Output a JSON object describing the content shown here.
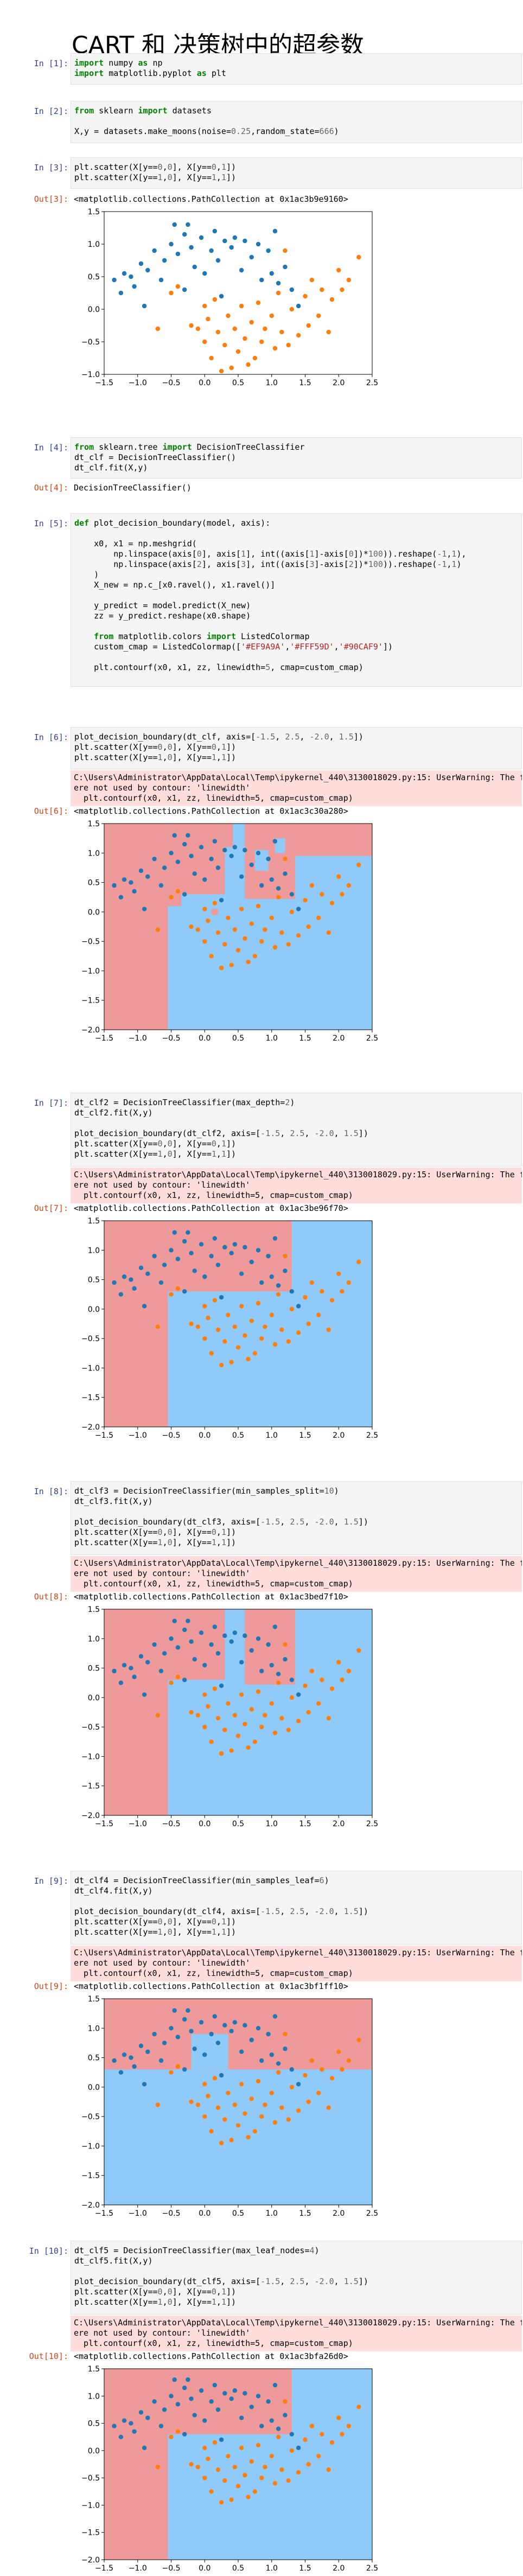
{
  "page_title": "CART 和 决策树中的超参数",
  "theme": {
    "blue": "#1f77b4",
    "orange": "#ff7f0e",
    "region0": "#EF9A9A",
    "region1": "#FFF59D",
    "region2": "#90CAF9"
  },
  "cells": [
    {
      "id": "c1",
      "prompt": "In [1]:",
      "lines": [
        "import numpy as np",
        "import matplotlib.pyplot as plt"
      ]
    },
    {
      "id": "c2",
      "prompt": "In [2]:",
      "lines": [
        "from sklearn import datasets",
        "",
        "X,y = datasets.make_moons(noise=0.25,random_state=666)"
      ]
    },
    {
      "id": "c3",
      "prompt": "In [3]:",
      "lines": [
        "plt.scatter(X[y==0,0], X[y==0,1])",
        "plt.scatter(X[y==1,0], X[y==1,1])"
      ],
      "out_prompt": "Out[3]:",
      "out_text": "<matplotlib.collections.PathCollection at 0x1ac3b9e9160>"
    },
    {
      "id": "c4",
      "prompt": "In [4]:",
      "lines": [
        "from sklearn.tree import DecisionTreeClassifier",
        "dt_clf = DecisionTreeClassifier()",
        "dt_clf.fit(X,y)"
      ],
      "out_prompt": "Out[4]:",
      "out_text": "DecisionTreeClassifier()"
    },
    {
      "id": "c5",
      "prompt": "In [5]:",
      "lines": [
        "def plot_decision_boundary(model, axis):",
        "",
        "    x0, x1 = np.meshgrid(",
        "        np.linspace(axis[0], axis[1], int((axis[1]-axis[0])*100)).reshape(-1,1),",
        "        np.linspace(axis[2], axis[3], int((axis[3]-axis[2])*100)).reshape(-1,1)",
        "    )",
        "    X_new = np.c_[x0.ravel(), x1.ravel()]",
        "",
        "    y_predict = model.predict(X_new)",
        "    zz = y_predict.reshape(x0.shape)",
        "",
        "    from matplotlib.colors import ListedColormap",
        "    custom_cmap = ListedColormap(['#EF9A9A','#FFF59D','#90CAF9'])",
        "",
        "    plt.contourf(x0, x1, zz, linewidth=5, cmap=custom_cmap)"
      ]
    },
    {
      "id": "c6",
      "prompt": "In [6]:",
      "lines": [
        "plot_decision_boundary(dt_clf, axis=[-1.5, 2.5, -2.0, 1.5])",
        "plt.scatter(X[y==0,0], X[y==0,1])",
        "plt.scatter(X[y==1,0], X[y==1,1])"
      ],
      "warn": [
        "C:\\Users\\Administrator\\AppData\\Local\\Temp\\ipykernel_440\\3130018029.py:15: UserWarning: The following kwargs w",
        "ere not used by contour: 'linewidth'",
        "  plt.contourf(x0, x1, zz, linewidth=5, cmap=custom_cmap)"
      ],
      "out_prompt": "Out[6]:",
      "out_text": "<matplotlib.collections.PathCollection at 0x1ac3c30a280>"
    },
    {
      "id": "c7",
      "prompt": "In [7]:",
      "lines": [
        "dt_clf2 = DecisionTreeClassifier(max_depth=2)",
        "dt_clf2.fit(X,y)",
        "",
        "plot_decision_boundary(dt_clf2, axis=[-1.5, 2.5, -2.0, 1.5])",
        "plt.scatter(X[y==0,0], X[y==0,1])",
        "plt.scatter(X[y==1,0], X[y==1,1])"
      ],
      "warn": [
        "C:\\Users\\Administrator\\AppData\\Local\\Temp\\ipykernel_440\\3130018029.py:15: UserWarning: The following kwargs w",
        "ere not used by contour: 'linewidth'",
        "  plt.contourf(x0, x1, zz, linewidth=5, cmap=custom_cmap)"
      ],
      "out_prompt": "Out[7]:",
      "out_text": "<matplotlib.collections.PathCollection at 0x1ac3be96f70>"
    },
    {
      "id": "c8",
      "prompt": "In [8]:",
      "lines": [
        "dt_clf3 = DecisionTreeClassifier(min_samples_split=10)",
        "dt_clf3.fit(X,y)",
        "",
        "plot_decision_boundary(dt_clf3, axis=[-1.5, 2.5, -2.0, 1.5])",
        "plt.scatter(X[y==0,0], X[y==0,1])",
        "plt.scatter(X[y==1,0], X[y==1,1])"
      ],
      "warn": [
        "C:\\Users\\Administrator\\AppData\\Local\\Temp\\ipykernel_440\\3130018029.py:15: UserWarning: The following kwargs w",
        "ere not used by contour: 'linewidth'",
        "  plt.contourf(x0, x1, zz, linewidth=5, cmap=custom_cmap)"
      ],
      "out_prompt": "Out[8]:",
      "out_text": "<matplotlib.collections.PathCollection at 0x1ac3bed7f10>"
    },
    {
      "id": "c9",
      "prompt": "In [9]:",
      "lines": [
        "dt_clf4 = DecisionTreeClassifier(min_samples_leaf=6)",
        "dt_clf4.fit(X,y)",
        "",
        "plot_decision_boundary(dt_clf4, axis=[-1.5, 2.5, -2.0, 1.5])",
        "plt.scatter(X[y==0,0], X[y==0,1])",
        "plt.scatter(X[y==1,0], X[y==1,1])"
      ],
      "warn": [
        "C:\\Users\\Administrator\\AppData\\Local\\Temp\\ipykernel_440\\3130018029.py:15: UserWarning: The following kwargs w",
        "ere not used by contour: 'linewidth'",
        "  plt.contourf(x0, x1, zz, linewidth=5, cmap=custom_cmap)"
      ],
      "out_prompt": "Out[9]:",
      "out_text": "<matplotlib.collections.PathCollection at 0x1ac3bf1ff10>"
    },
    {
      "id": "c10",
      "prompt": "In [10]:",
      "lines": [
        "dt_clf5 = DecisionTreeClassifier(max_leaf_nodes=4)",
        "dt_clf5.fit(X,y)",
        "",
        "plot_decision_boundary(dt_clf5, axis=[-1.5, 2.5, -2.0, 1.5])",
        "plt.scatter(X[y==0,0], X[y==0,1])",
        "plt.scatter(X[y==1,0], X[y==1,1])"
      ],
      "warn": [
        "C:\\Users\\Administrator\\AppData\\Local\\Temp\\ipykernel_440\\3130018029.py:15: UserWarning: The following kwargs w",
        "ere not used by contour: 'linewidth'",
        "  plt.contourf(x0, x1, zz, linewidth=5, cmap=custom_cmap)"
      ],
      "out_prompt": "Out[10]:",
      "out_text": "<matplotlib.collections.PathCollection at 0x1ac3bfa26d0>"
    }
  ],
  "chart_data": [
    {
      "type": "scatter",
      "cell": "c3",
      "xlim": [
        -1.5,
        2.5
      ],
      "ylim": [
        -1.0,
        1.5
      ],
      "xticks": [
        "−1.5",
        "−1.0",
        "−0.5",
        "0.0",
        "0.5",
        "1.0",
        "1.5",
        "2.0",
        "2.5"
      ],
      "yticks": [
        "−1.0",
        "−0.5",
        "0.0",
        "0.5",
        "1.0",
        "1.5"
      ],
      "regions": []
    },
    {
      "type": "scatter",
      "cell": "c6",
      "xlim": [
        -1.5,
        2.5
      ],
      "ylim": [
        -2.0,
        1.5
      ],
      "xticks": [
        "−1.5",
        "−1.0",
        "−0.5",
        "0.0",
        "0.5",
        "1.0",
        "1.5",
        "2.0",
        "2.5"
      ],
      "yticks": [
        "−2.0",
        "−1.5",
        "−1.0",
        "−0.5",
        "0.0",
        "0.5",
        "1.0",
        "1.5"
      ],
      "regions": [
        {
          "x": [
            -1.5,
            2.5
          ],
          "y": [
            -2.0,
            1.5
          ],
          "c": 2
        },
        {
          "x": [
            -1.5,
            -0.55
          ],
          "y": [
            -2.0,
            1.5
          ],
          "c": 0
        },
        {
          "x": [
            -0.55,
            0.3
          ],
          "y": [
            0.3,
            1.5
          ],
          "c": 0
        },
        {
          "x": [
            -0.55,
            -0.35
          ],
          "y": [
            0.1,
            0.35
          ],
          "c": 0
        },
        {
          "x": [
            0.3,
            0.42
          ],
          "y": [
            1.1,
            1.5
          ],
          "c": 0
        },
        {
          "x": [
            0.6,
            1.35
          ],
          "y": [
            0.22,
            1.5
          ],
          "c": 0
        },
        {
          "x": [
            0.75,
            0.95
          ],
          "y": [
            0.7,
            1.05
          ],
          "c": 2
        },
        {
          "x": [
            1.05,
            1.2
          ],
          "y": [
            1.0,
            1.25
          ],
          "c": 2
        },
        {
          "x": [
            1.35,
            2.5
          ],
          "y": [
            0.95,
            1.5
          ],
          "c": 0
        },
        {
          "x": [
            0.1,
            0.2
          ],
          "y": [
            -0.05,
            0.05
          ],
          "c": 0
        }
      ]
    },
    {
      "type": "scatter",
      "cell": "c7",
      "xlim": [
        -1.5,
        2.5
      ],
      "ylim": [
        -2.0,
        1.5
      ],
      "xticks": [
        "−1.5",
        "−1.0",
        "−0.5",
        "0.0",
        "0.5",
        "1.0",
        "1.5",
        "2.0",
        "2.5"
      ],
      "yticks": [
        "−2.0",
        "−1.5",
        "−1.0",
        "−0.5",
        "0.0",
        "0.5",
        "1.0",
        "1.5"
      ],
      "regions": [
        {
          "x": [
            -1.5,
            2.5
          ],
          "y": [
            -2.0,
            1.5
          ],
          "c": 2
        },
        {
          "x": [
            -1.5,
            -0.55
          ],
          "y": [
            -2.0,
            1.5
          ],
          "c": 0
        },
        {
          "x": [
            -0.55,
            1.3
          ],
          "y": [
            0.3,
            1.5
          ],
          "c": 0
        }
      ]
    },
    {
      "type": "scatter",
      "cell": "c8",
      "xlim": [
        -1.5,
        2.5
      ],
      "ylim": [
        -2.0,
        1.5
      ],
      "xticks": [
        "−1.5",
        "−1.0",
        "−0.5",
        "0.0",
        "0.5",
        "1.0",
        "1.5",
        "2.0",
        "2.5"
      ],
      "yticks": [
        "−2.0",
        "−1.5",
        "−1.0",
        "−0.5",
        "0.0",
        "0.5",
        "1.0",
        "1.5"
      ],
      "regions": [
        {
          "x": [
            -1.5,
            2.5
          ],
          "y": [
            -2.0,
            1.5
          ],
          "c": 2
        },
        {
          "x": [
            -1.5,
            -0.55
          ],
          "y": [
            -2.0,
            1.5
          ],
          "c": 0
        },
        {
          "x": [
            -0.55,
            0.3
          ],
          "y": [
            0.3,
            1.5
          ],
          "c": 0
        },
        {
          "x": [
            0.6,
            1.35
          ],
          "y": [
            0.22,
            1.5
          ],
          "c": 0
        }
      ]
    },
    {
      "type": "scatter",
      "cell": "c9",
      "xlim": [
        -1.5,
        2.5
      ],
      "ylim": [
        -2.0,
        1.5
      ],
      "xticks": [
        "−1.5",
        "−1.0",
        "−0.5",
        "0.0",
        "0.5",
        "1.0",
        "1.5",
        "2.0",
        "2.5"
      ],
      "yticks": [
        "−2.0",
        "−1.5",
        "−1.0",
        "−0.5",
        "0.0",
        "0.5",
        "1.0",
        "1.5"
      ],
      "regions": [
        {
          "x": [
            -1.5,
            2.5
          ],
          "y": [
            -2.0,
            1.5
          ],
          "c": 2
        },
        {
          "x": [
            -1.5,
            2.5
          ],
          "y": [
            0.3,
            1.5
          ],
          "c": 0
        },
        {
          "x": [
            -0.2,
            0.35
          ],
          "y": [
            0.3,
            0.9
          ],
          "c": 2
        }
      ]
    },
    {
      "type": "scatter",
      "cell": "c10",
      "xlim": [
        -1.5,
        2.5
      ],
      "ylim": [
        -2.0,
        1.5
      ],
      "xticks": [
        "−1.5",
        "−1.0",
        "−0.5",
        "0.0",
        "0.5",
        "1.0",
        "1.5",
        "2.0",
        "2.5"
      ],
      "yticks": [
        "−2.0",
        "−1.5",
        "−1.0",
        "−0.5",
        "0.0",
        "0.5",
        "1.0",
        "1.5"
      ],
      "regions": [
        {
          "x": [
            -1.5,
            2.5
          ],
          "y": [
            -2.0,
            1.5
          ],
          "c": 2
        },
        {
          "x": [
            -1.5,
            -0.55
          ],
          "y": [
            -2.0,
            1.5
          ],
          "c": 0
        },
        {
          "x": [
            -0.55,
            1.3
          ],
          "y": [
            0.3,
            1.5
          ],
          "c": 0
        }
      ]
    }
  ],
  "points": {
    "class0": [
      [
        -1.35,
        0.45
      ],
      [
        -1.2,
        0.55
      ],
      [
        -1.25,
        0.25
      ],
      [
        -1.1,
        0.5
      ],
      [
        -1.05,
        0.35
      ],
      [
        -0.95,
        0.7
      ],
      [
        -0.85,
        0.6
      ],
      [
        -0.75,
        0.9
      ],
      [
        -0.65,
        0.45
      ],
      [
        -0.6,
        0.75
      ],
      [
        -0.5,
        1.0
      ],
      [
        -0.45,
        1.3
      ],
      [
        -0.4,
        0.85
      ],
      [
        -0.3,
        1.15
      ],
      [
        -0.25,
        1.3
      ],
      [
        -0.2,
        0.95
      ],
      [
        -0.15,
        0.65
      ],
      [
        -0.05,
        1.1
      ],
      [
        0.0,
        0.55
      ],
      [
        0.1,
        0.9
      ],
      [
        0.15,
        1.2
      ],
      [
        0.2,
        0.75
      ],
      [
        0.3,
        1.05
      ],
      [
        0.4,
        0.95
      ],
      [
        0.45,
        1.1
      ],
      [
        0.55,
        0.6
      ],
      [
        0.6,
        1.05
      ],
      [
        0.7,
        0.8
      ],
      [
        0.8,
        1.0
      ],
      [
        0.85,
        0.45
      ],
      [
        0.95,
        0.9
      ],
      [
        1.0,
        0.55
      ],
      [
        1.05,
        1.2
      ],
      [
        1.1,
        0.4
      ],
      [
        1.2,
        0.65
      ],
      [
        1.3,
        0.3
      ],
      [
        -0.9,
        0.05
      ],
      [
        -0.3,
        0.3
      ],
      [
        0.25,
        0.2
      ],
      [
        1.4,
        0.05
      ]
    ],
    "class1": [
      [
        -0.5,
        0.25
      ],
      [
        -0.4,
        0.35
      ],
      [
        -0.2,
        -0.25
      ],
      [
        -0.1,
        -0.3
      ],
      [
        0.0,
        -0.5
      ],
      [
        0.05,
        -0.15
      ],
      [
        0.1,
        -0.75
      ],
      [
        0.15,
        0.15
      ],
      [
        0.2,
        -0.35
      ],
      [
        0.3,
        -0.55
      ],
      [
        0.35,
        -0.1
      ],
      [
        0.4,
        -0.9
      ],
      [
        0.45,
        -0.3
      ],
      [
        0.5,
        -0.65
      ],
      [
        0.55,
        0.05
      ],
      [
        0.6,
        -0.45
      ],
      [
        0.7,
        -0.2
      ],
      [
        0.75,
        -0.75
      ],
      [
        0.8,
        0.1
      ],
      [
        0.85,
        -0.5
      ],
      [
        0.9,
        -0.3
      ],
      [
        1.0,
        -0.1
      ],
      [
        1.05,
        -0.6
      ],
      [
        1.1,
        0.25
      ],
      [
        1.15,
        -0.35
      ],
      [
        1.25,
        -0.55
      ],
      [
        1.3,
        0.0
      ],
      [
        1.4,
        -0.4
      ],
      [
        1.5,
        0.2
      ],
      [
        1.55,
        -0.25
      ],
      [
        1.6,
        0.45
      ],
      [
        1.7,
        -0.1
      ],
      [
        1.75,
        0.3
      ],
      [
        1.85,
        -0.35
      ],
      [
        1.9,
        0.15
      ],
      [
        2.0,
        0.6
      ],
      [
        2.05,
        0.3
      ],
      [
        2.15,
        0.45
      ],
      [
        2.3,
        0.8
      ],
      [
        -0.7,
        -0.3
      ],
      [
        0.25,
        -0.95
      ],
      [
        0.65,
        -0.85
      ],
      [
        1.2,
        0.9
      ],
      [
        0.0,
        0.05
      ]
    ]
  }
}
